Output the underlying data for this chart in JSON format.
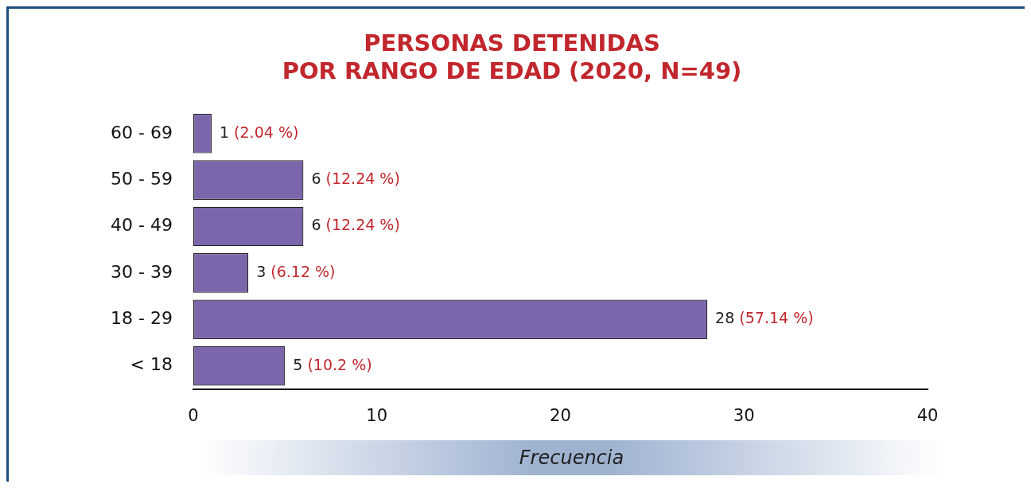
{
  "chart_data": {
    "type": "bar",
    "orientation": "horizontal",
    "title": "PERSONAS DETENIDAS\nPOR RANGO DE EDAD (2020, N=49)",
    "xlabel": "Frecuencia",
    "categories": [
      "60 - 69",
      "50 - 59",
      "40 - 49",
      "30 - 39",
      "18 - 29",
      "< 18"
    ],
    "values": [
      1,
      6,
      6,
      3,
      28,
      5
    ],
    "value_labels": [
      "1 (2.04 %)",
      "6 (12.24 %)",
      "6 (12.24 %)",
      "3 (6.12 %)",
      "28 (57.14 %)",
      "5 (10.2 %)"
    ],
    "color": "#7b65ab",
    "xlim": [
      0,
      40
    ],
    "xticks": [
      0,
      10,
      20,
      30,
      40
    ],
    "grid": false,
    "legend": false
  }
}
